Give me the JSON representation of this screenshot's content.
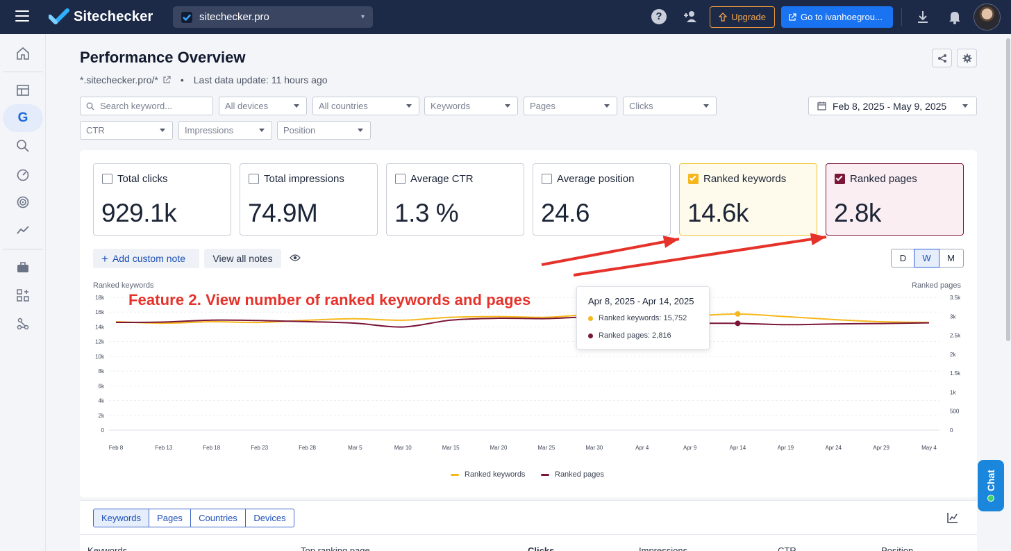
{
  "app": {
    "name": "Sitechecker",
    "site": "sitechecker.pro"
  },
  "topbar": {
    "help": "?",
    "upgrade_label": "Upgrade",
    "goto_label": "Go to ivanhoegrou..."
  },
  "page": {
    "title": "Performance Overview",
    "domain": "*.sitechecker.pro/*",
    "separator": "•",
    "last_update": "Last data update: 11 hours ago"
  },
  "filters": {
    "search_placeholder": "Search keyword...",
    "devices": "All devices",
    "countries": "All countries",
    "keywords": "Keywords",
    "pages": "Pages",
    "clicks": "Clicks",
    "ctr": "CTR",
    "impressions": "Impressions",
    "position": "Position",
    "date_range": "Feb 8, 2025 - May 9, 2025"
  },
  "kpis": [
    {
      "label": "Total clicks",
      "value": "929.1k",
      "checked": false
    },
    {
      "label": "Total impressions",
      "value": "74.9M",
      "checked": false
    },
    {
      "label": "Average CTR",
      "value": "1.3 %",
      "checked": false
    },
    {
      "label": "Average position",
      "value": "24.6",
      "checked": false
    },
    {
      "label": "Ranked keywords",
      "value": "14.6k",
      "checked": true
    },
    {
      "label": "Ranked pages",
      "value": "2.8k",
      "checked": true
    }
  ],
  "notes": {
    "add_label": "Add custom note",
    "view_label": "View all notes"
  },
  "granularity": {
    "options": [
      "D",
      "W",
      "M"
    ],
    "selected": "W"
  },
  "annotation": "Feature 2. View number of ranked keywords and pages",
  "tooltip": {
    "date": "Apr 8, 2025 - Apr 14, 2025",
    "keywords_label": "Ranked keywords: 15,752",
    "pages_label": "Ranked pages: 2,816"
  },
  "colors": {
    "keywords": "#f6b71c",
    "pages": "#7a1538",
    "accent": "#1a73f0",
    "annotation": "#e5322a"
  },
  "chart_data": {
    "type": "line",
    "x": [
      "Feb 8",
      "Feb 13",
      "Feb 18",
      "Feb 23",
      "Feb 28",
      "Mar 5",
      "Mar 10",
      "Mar 15",
      "Mar 20",
      "Mar 25",
      "Mar 30",
      "Apr 4",
      "Apr 9",
      "Apr 14",
      "Apr 19",
      "Apr 24",
      "Apr 29",
      "May 4"
    ],
    "series": [
      {
        "name": "Ranked keywords",
        "axis": "left",
        "values": [
          14700,
          14500,
          14700,
          14600,
          14900,
          15100,
          14900,
          15300,
          15400,
          15300,
          15700,
          15600,
          15500,
          15752,
          15400,
          15000,
          14700,
          14600
        ]
      },
      {
        "name": "Ranked pages",
        "axis": "right",
        "values": [
          2840,
          2850,
          2900,
          2890,
          2860,
          2820,
          2720,
          2900,
          2950,
          2940,
          2980,
          2870,
          2820,
          2816,
          2780,
          2800,
          2810,
          2830
        ]
      }
    ],
    "ylabel": "Ranked keywords",
    "y2label": "Ranked pages",
    "yticks": [
      "0",
      "2k",
      "4k",
      "6k",
      "8k",
      "10k",
      "12k",
      "14k",
      "16k",
      "18k"
    ],
    "y2ticks": [
      "0",
      "500",
      "1k",
      "1.5k",
      "2k",
      "2.5k",
      "3k",
      "3.5k"
    ],
    "ylim": [
      0,
      18000
    ],
    "y2lim": [
      0,
      3500
    ],
    "highlight_index": 13,
    "grid": true,
    "legend_position": "bottom"
  },
  "table": {
    "tabs": [
      "Keywords",
      "Pages",
      "Countries",
      "Devices"
    ],
    "active_tab": "Keywords",
    "columns": [
      "Keywords",
      "Top ranking page",
      "Clicks",
      "Impressions",
      "CTR",
      "Position"
    ]
  },
  "chat_label": "Chat"
}
